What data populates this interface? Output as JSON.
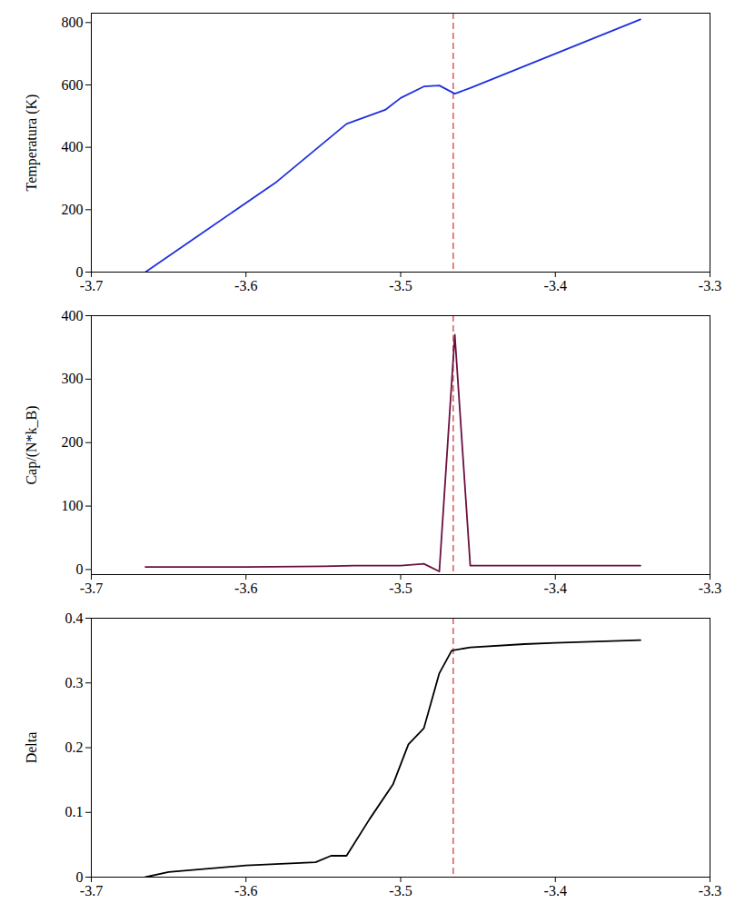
{
  "chart_data": [
    {
      "type": "line",
      "ylabel": "Temperatura (K)",
      "color": "#1f2fe0",
      "x": [
        -3.665,
        -3.58,
        -3.535,
        -3.51,
        -3.5,
        -3.485,
        -3.475,
        -3.465,
        -3.455,
        -3.345
      ],
      "values": [
        0,
        290,
        475,
        520,
        558,
        595,
        598,
        572,
        590,
        810
      ],
      "xlim": [
        -3.7,
        -3.3
      ],
      "xticks": [
        -3.7,
        -3.6,
        -3.5,
        -3.4,
        -3.3
      ],
      "ylim": [
        0,
        830
      ],
      "yticks": [
        0,
        200,
        400,
        600,
        800
      ],
      "reference_line": {
        "x": -3.466,
        "color": "#cc3333",
        "line_style": "dashed"
      }
    },
    {
      "type": "line",
      "ylabel": "Cap/(N*k_B)",
      "color": "#6b1040",
      "x": [
        -3.665,
        -3.6,
        -3.55,
        -3.53,
        -3.5,
        -3.485,
        -3.475,
        -3.465,
        -3.455,
        -3.4,
        -3.345
      ],
      "values": [
        4,
        4,
        5,
        6,
        6,
        9,
        -3,
        370,
        6,
        6,
        6
      ],
      "xlim": [
        -3.7,
        -3.3
      ],
      "xticks": [
        -3.7,
        -3.6,
        -3.5,
        -3.4,
        -3.3
      ],
      "ylim": [
        -8,
        400
      ],
      "yticks": [
        0,
        100,
        200,
        300,
        400
      ],
      "reference_line": {
        "x": -3.466,
        "color": "#cc3333",
        "line_style": "dashed"
      }
    },
    {
      "type": "line",
      "ylabel": "Delta",
      "color": "#000000",
      "x": [
        -3.665,
        -3.65,
        -3.6,
        -3.555,
        -3.545,
        -3.535,
        -3.52,
        -3.505,
        -3.495,
        -3.485,
        -3.475,
        -3.467,
        -3.455,
        -3.42,
        -3.4,
        -3.345
      ],
      "values": [
        0,
        0.008,
        0.018,
        0.023,
        0.033,
        0.033,
        0.09,
        0.143,
        0.205,
        0.23,
        0.315,
        0.35,
        0.355,
        0.36,
        0.362,
        0.366
      ],
      "xlim": [
        -3.7,
        -3.3
      ],
      "xticks": [
        -3.7,
        -3.6,
        -3.5,
        -3.4,
        -3.3
      ],
      "ylim": [
        0,
        0.4
      ],
      "yticks": [
        0,
        0.1,
        0.2,
        0.3,
        0.4
      ],
      "reference_line": {
        "x": -3.466,
        "color": "#cc3333",
        "line_style": "dashed"
      }
    }
  ]
}
